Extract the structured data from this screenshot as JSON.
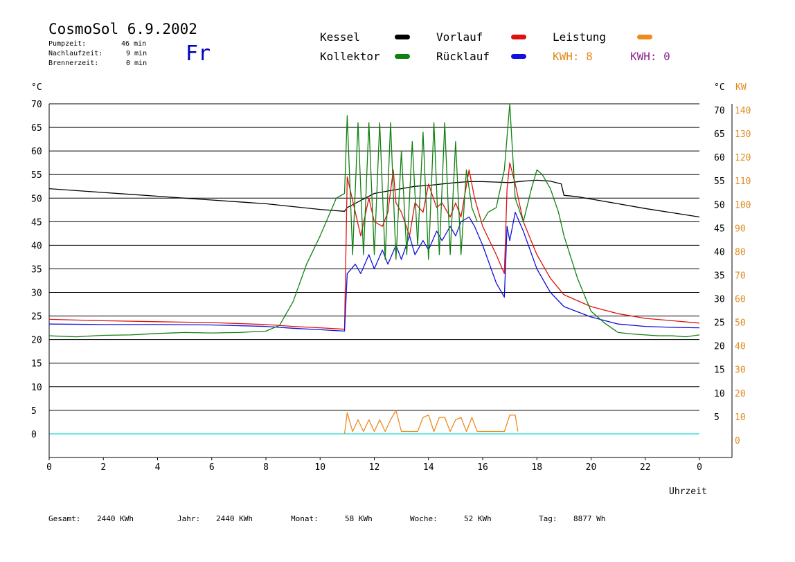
{
  "header": {
    "title": "CosmoSol 6.9.2002",
    "stats": [
      {
        "label": "Pumpzeit:",
        "value": "46 min"
      },
      {
        "label": "Nachlaufzeit:",
        "value": "9 min"
      },
      {
        "label": "Brennerzeit:",
        "value": "0 min"
      }
    ],
    "weekday": "Fr"
  },
  "legend": {
    "kessel": {
      "label": "Kessel",
      "color": "#000000"
    },
    "vorlauf": {
      "label": "Vorlauf",
      "color": "#e01010"
    },
    "leistung": {
      "label": "Leistung",
      "color": "#f08a1e"
    },
    "kollektor": {
      "label": "Kollektor",
      "color": "#108010"
    },
    "ruecklauf": {
      "label": "Rücklauf",
      "color": "#1010e0"
    },
    "kwh1": "KWH: 8",
    "kwh2": "KWH: 0"
  },
  "footer": [
    {
      "label": "Gesamt:",
      "value": "2440 KWh"
    },
    {
      "label": "Jahr:",
      "value": "2440 KWh"
    },
    {
      "label": "Monat:",
      "value": "58 KWh"
    },
    {
      "label": "Woche:",
      "value": "52 KWh"
    },
    {
      "label": "Tag:",
      "value": "8877 Wh"
    }
  ],
  "chart_data": {
    "type": "line",
    "xlabel": "Uhrzeit",
    "ylabel_left": "°C",
    "ylabel_right": "°C",
    "ylabel_right2": "KW",
    "xlim": [
      0,
      24
    ],
    "ylim": [
      -5,
      70
    ],
    "x_ticks": [
      "0",
      "2",
      "4",
      "6",
      "8",
      "10",
      "12",
      "14",
      "16",
      "18",
      "20",
      "22",
      "0"
    ],
    "y_ticks": [
      0,
      5,
      10,
      15,
      20,
      25,
      30,
      35,
      40,
      45,
      50,
      55,
      60,
      65,
      70
    ],
    "y_ticks_right": [
      5,
      10,
      15,
      20,
      25,
      30,
      35,
      40,
      45,
      50,
      55,
      60,
      65,
      70
    ],
    "kw_ticks": [
      0,
      10,
      20,
      30,
      40,
      50,
      60,
      70,
      80,
      90,
      100,
      110,
      120,
      130,
      140
    ],
    "grid": "horizontal",
    "baseline_color": "#40e0e0",
    "series": [
      {
        "name": "Kessel",
        "color": "#000000",
        "x": [
          0,
          1,
          2,
          3,
          4,
          5,
          6,
          7,
          8,
          9,
          10,
          10.9,
          11,
          11.5,
          12,
          12.5,
          13,
          13.5,
          14,
          14.5,
          15,
          15.5,
          16,
          16.5,
          17,
          17.5,
          18,
          18.5,
          18.9,
          19,
          19.5,
          20,
          21,
          22,
          23,
          24
        ],
        "y": [
          52,
          51.6,
          51.2,
          50.8,
          50.4,
          50,
          49.6,
          49.2,
          48.8,
          48.2,
          47.6,
          47.2,
          48,
          49.5,
          51,
          51.5,
          52,
          52.5,
          52.7,
          53,
          53.3,
          53.5,
          53.5,
          53.4,
          53.3,
          53.6,
          53.8,
          53.6,
          53,
          50.6,
          50.3,
          49.8,
          48.8,
          47.8,
          46.9,
          46
        ]
      },
      {
        "name": "Vorlauf",
        "color": "#e01010",
        "x": [
          0,
          2,
          4,
          6,
          8,
          9,
          10,
          10.9,
          11,
          11.3,
          11.5,
          11.8,
          12,
          12.3,
          12.5,
          12.7,
          12.8,
          13,
          13.3,
          13.5,
          13.8,
          14,
          14.3,
          14.5,
          14.8,
          15,
          15.2,
          15.5,
          15.7,
          16,
          16.5,
          16.8,
          16.9,
          17,
          17.2,
          17.5,
          18,
          18.5,
          19,
          20,
          21,
          22,
          23,
          24
        ],
        "y": [
          24.3,
          24,
          23.8,
          23.6,
          23.2,
          22.8,
          22.5,
          22.2,
          54.5,
          47,
          42,
          50,
          45,
          44,
          47,
          56,
          49,
          47,
          42,
          49,
          47,
          53,
          48,
          49,
          46,
          49,
          46,
          56,
          50,
          44,
          38,
          34,
          52,
          57.5,
          53,
          45,
          38,
          33,
          29.5,
          27,
          25.5,
          24.5,
          24,
          23.5
        ]
      },
      {
        "name": "Rücklauf",
        "color": "#1010e0",
        "x": [
          0,
          2,
          4,
          6,
          8,
          9,
          10,
          10.9,
          11,
          11.3,
          11.5,
          11.8,
          12,
          12.3,
          12.5,
          12.8,
          13,
          13.3,
          13.5,
          13.8,
          14,
          14.3,
          14.5,
          14.8,
          15,
          15.2,
          15.5,
          15.7,
          16,
          16.5,
          16.8,
          16.9,
          17,
          17.2,
          17.5,
          18,
          18.5,
          19,
          20,
          21,
          22,
          23,
          24
        ],
        "y": [
          23.3,
          23.2,
          23.2,
          23.1,
          22.8,
          22.4,
          22.1,
          21.8,
          34,
          36,
          34,
          38,
          35,
          39,
          36,
          40,
          37,
          42,
          38,
          41,
          39,
          43,
          41,
          44,
          42,
          45,
          46,
          44,
          40,
          32,
          29,
          44,
          41,
          47,
          43,
          35,
          30,
          27,
          24.8,
          23.3,
          22.8,
          22.6,
          22.5
        ]
      },
      {
        "name": "Kollektor",
        "color": "#108010",
        "x": [
          0,
          1,
          2,
          3,
          4,
          5,
          6,
          7,
          8,
          8.5,
          9,
          9.5,
          10,
          10.3,
          10.6,
          10.9,
          11,
          11.2,
          11.4,
          11.6,
          11.8,
          12,
          12.2,
          12.4,
          12.6,
          12.8,
          13,
          13.2,
          13.4,
          13.6,
          13.8,
          14,
          14.2,
          14.4,
          14.6,
          14.8,
          15,
          15.2,
          15.4,
          15.6,
          15.8,
          16,
          16.2,
          16.5,
          16.8,
          17,
          17.2,
          17.5,
          17.8,
          18,
          18.2,
          18.5,
          18.8,
          19,
          19.5,
          20,
          20.5,
          21,
          21.5,
          22,
          22.5,
          23,
          23.5,
          24
        ],
        "y": [
          20.8,
          20.6,
          20.9,
          21,
          21.3,
          21.5,
          21.4,
          21.5,
          21.8,
          23,
          28,
          36,
          42,
          46,
          50,
          51,
          67.5,
          38,
          66,
          38,
          66,
          38,
          66,
          37,
          66,
          37,
          60,
          38,
          62,
          40,
          64,
          37,
          66,
          38,
          66,
          38,
          62,
          38,
          56,
          48,
          45,
          45,
          47,
          48,
          56,
          70,
          50,
          45,
          52,
          56,
          55,
          52,
          47,
          42,
          33,
          26,
          23.5,
          21.5,
          21.2,
          21,
          20.8,
          20.8,
          20.6,
          21
        ]
      },
      {
        "name": "Leistung",
        "color": "#f08a1e",
        "x": [
          10.9,
          11,
          11.2,
          11.4,
          11.6,
          11.8,
          12,
          12.2,
          12.4,
          12.6,
          12.8,
          13,
          13.6,
          13.8,
          14,
          14.2,
          14.4,
          14.6,
          14.8,
          15,
          15.2,
          15.4,
          15.6,
          15.8,
          16.8,
          17,
          17.2,
          17.3
        ],
        "y": [
          0,
          4.5,
          0.5,
          3,
          0.5,
          3,
          0.5,
          3,
          0.5,
          3,
          5,
          0.5,
          0.5,
          3.5,
          4,
          0.5,
          3.5,
          3.5,
          0.5,
          3,
          3.5,
          0.5,
          3.5,
          0.5,
          0.5,
          4,
          4,
          0.5
        ]
      }
    ]
  }
}
